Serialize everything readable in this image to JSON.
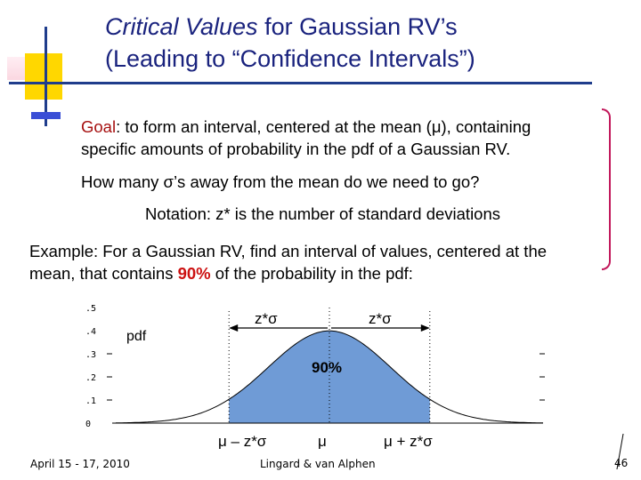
{
  "title": {
    "line1_italic": "Critical Values",
    "line1_rest": " for Gaussian RV’s",
    "line2": "(Leading to “Confidence Intervals”)"
  },
  "goal": {
    "label": "Goal",
    "line1_rest": ": to form an interval, centered at the mean (μ), containing",
    "line2": "specific amounts of probability in the pdf of a Gaussian RV."
  },
  "question": "How many σ’s away from the mean do we need to go?",
  "notation": "Notation:  z* is the number of standard deviations",
  "example": {
    "line1": "Example: For a Gaussian RV, find an interval of values, centered at the",
    "line2_pre": "mean, that contains ",
    "line2_highlight": "90%",
    "line2_post": " of the probability in the pdf:"
  },
  "colors": {
    "title": "#1a237e",
    "goal_label": "#a61010",
    "highlight": "#cc1111",
    "shaded_area": "#6f9bd6"
  },
  "chart_data": {
    "type": "area",
    "distribution": "standard normal pdf",
    "ylim": [
      0,
      0.5
    ],
    "y_ticks": [
      ".5",
      ".4",
      ".3",
      ".2",
      ".1",
      "0"
    ],
    "y_tick_values": [
      0.5,
      0.4,
      0.3,
      0.2,
      0.1,
      0
    ],
    "xlim": [
      -3.5,
      3.5
    ],
    "shaded_interval": [
      -1.645,
      1.645
    ],
    "curve_label": "pdf",
    "area_label": "90%",
    "arrow_label_left": "z*σ",
    "arrow_label_right": "z*σ",
    "x_marker_labels": [
      "μ – z*σ",
      "μ",
      "μ + z*σ"
    ]
  },
  "footer": {
    "date": "April 15 - 17, 2010",
    "authors": "Lingard & van Alphen",
    "page_number": "46"
  }
}
